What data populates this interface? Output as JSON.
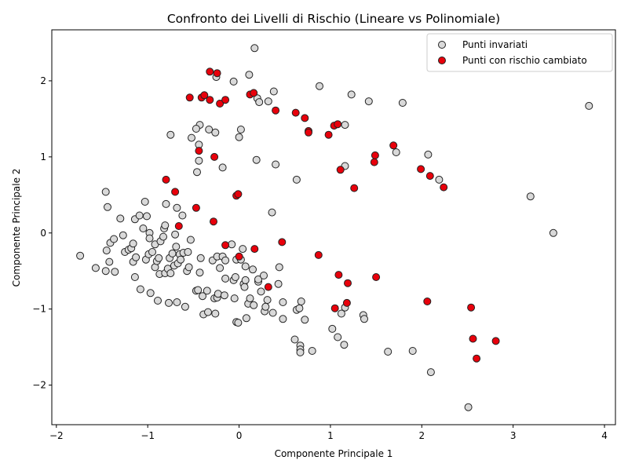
{
  "chart_data": {
    "type": "scatter",
    "title": "Confronto dei Livelli di Rischio (Lineare vs Polinomiale)",
    "xlabel": "Componente Principale 1",
    "ylabel": "Componente Principale 2",
    "xlim": [
      -2.05,
      4.12
    ],
    "ylim": [
      -2.52,
      2.67
    ],
    "xticks": [
      -2,
      -1,
      0,
      1,
      2,
      3,
      4
    ],
    "yticks": [
      -2,
      -1,
      0,
      1,
      2
    ],
    "grid": false,
    "legend_position": "top-right",
    "colors": {
      "unchanged_fill": "#d9d9d9",
      "changed_fill": "#e8000b",
      "edge": "#222222"
    },
    "series": [
      {
        "name": "Punti invariati",
        "points": [
          [
            0.17,
            2.43
          ],
          [
            0.11,
            2.08
          ],
          [
            -0.25,
            2.05
          ],
          [
            -0.06,
            1.99
          ],
          [
            0.38,
            1.86
          ],
          [
            0.88,
            1.93
          ],
          [
            1.23,
            1.82
          ],
          [
            0.2,
            1.77
          ],
          [
            0.22,
            1.72
          ],
          [
            0.32,
            1.73
          ],
          [
            1.42,
            1.73
          ],
          [
            1.79,
            1.71
          ],
          [
            3.83,
            1.67
          ],
          [
            -0.43,
            1.42
          ],
          [
            -0.47,
            1.37
          ],
          [
            -0.33,
            1.36
          ],
          [
            -0.26,
            1.32
          ],
          [
            0.02,
            1.36
          ],
          [
            0.0,
            1.26
          ],
          [
            -0.75,
            1.29
          ],
          [
            -0.52,
            1.25
          ],
          [
            -0.44,
            1.16
          ],
          [
            1.16,
            1.42
          ],
          [
            1.72,
            1.06
          ],
          [
            2.07,
            1.03
          ],
          [
            -0.44,
            0.95
          ],
          [
            -0.46,
            0.8
          ],
          [
            -0.18,
            0.86
          ],
          [
            0.19,
            0.96
          ],
          [
            0.4,
            0.9
          ],
          [
            1.16,
            0.88
          ],
          [
            2.19,
            0.7
          ],
          [
            0.63,
            0.7
          ],
          [
            3.19,
            0.48
          ],
          [
            3.44,
            0.0
          ],
          [
            -1.46,
            0.54
          ],
          [
            -1.44,
            0.34
          ],
          [
            -1.03,
            0.41
          ],
          [
            -0.8,
            0.38
          ],
          [
            -0.68,
            0.33
          ],
          [
            -1.3,
            0.19
          ],
          [
            -1.14,
            0.18
          ],
          [
            -1.09,
            0.23
          ],
          [
            -1.01,
            0.22
          ],
          [
            -0.62,
            0.23
          ],
          [
            0.36,
            0.27
          ],
          [
            -1.74,
            -0.3
          ],
          [
            -1.57,
            -0.46
          ],
          [
            -1.46,
            -0.5
          ],
          [
            -1.45,
            -0.23
          ],
          [
            -1.42,
            -0.38
          ],
          [
            -1.41,
            -0.13
          ],
          [
            -1.37,
            -0.08
          ],
          [
            -1.36,
            -0.51
          ],
          [
            -1.27,
            -0.03
          ],
          [
            -1.25,
            -0.25
          ],
          [
            -1.21,
            -0.22
          ],
          [
            -1.18,
            -0.2
          ],
          [
            -1.16,
            -0.14
          ],
          [
            -1.16,
            -0.38
          ],
          [
            -1.14,
            -0.58
          ],
          [
            -1.13,
            -0.32
          ],
          [
            -1.08,
            -0.74
          ],
          [
            -1.05,
            0.06
          ],
          [
            -1.02,
            -0.35
          ],
          [
            -0.99,
            -0.28
          ],
          [
            -0.98,
            0.0
          ],
          [
            -0.98,
            -0.07
          ],
          [
            -0.97,
            -0.79
          ],
          [
            -0.95,
            -0.25
          ],
          [
            -0.92,
            -0.45
          ],
          [
            -0.92,
            -0.15
          ],
          [
            -0.9,
            -0.37
          ],
          [
            -0.89,
            -0.89
          ],
          [
            -0.88,
            -0.33
          ],
          [
            -0.87,
            -0.54
          ],
          [
            -0.86,
            -0.11
          ],
          [
            -0.83,
            -0.05
          ],
          [
            -0.82,
            0.06
          ],
          [
            -0.81,
            0.1
          ],
          [
            -0.81,
            -0.53
          ],
          [
            -0.78,
            -0.47
          ],
          [
            -0.77,
            -0.92
          ],
          [
            -0.76,
            -0.33
          ],
          [
            -0.75,
            -0.53
          ],
          [
            -0.73,
            -0.27
          ],
          [
            -0.71,
            -0.43
          ],
          [
            -0.7,
            -0.02
          ],
          [
            -0.69,
            -0.18
          ],
          [
            -0.68,
            -0.91
          ],
          [
            -0.67,
            -0.4
          ],
          [
            -0.65,
            -0.28
          ],
          [
            -0.64,
            -0.35
          ],
          [
            -0.61,
            -0.26
          ],
          [
            -0.59,
            -0.97
          ],
          [
            -0.57,
            -0.5
          ],
          [
            -0.56,
            -0.25
          ],
          [
            -0.55,
            -0.45
          ],
          [
            -0.53,
            -0.09
          ],
          [
            -0.47,
            -0.76
          ],
          [
            -0.45,
            -0.75
          ],
          [
            -0.43,
            -0.52
          ],
          [
            -0.42,
            -0.33
          ],
          [
            -0.4,
            -0.83
          ],
          [
            -0.39,
            -1.07
          ],
          [
            -0.35,
            -0.76
          ],
          [
            -0.34,
            -1.04
          ],
          [
            -0.29,
            -0.36
          ],
          [
            -0.27,
            -0.86
          ],
          [
            -0.26,
            -1.06
          ],
          [
            -0.24,
            -0.85
          ],
          [
            -0.24,
            -0.31
          ],
          [
            -0.23,
            -0.8
          ],
          [
            -0.21,
            -0.46
          ],
          [
            -0.18,
            -0.31
          ],
          [
            -0.16,
            -0.82
          ],
          [
            -0.15,
            -0.6
          ],
          [
            -0.15,
            -0.36
          ],
          [
            -0.08,
            -0.15
          ],
          [
            -0.06,
            -0.62
          ],
          [
            -0.05,
            -0.86
          ],
          [
            -0.04,
            -0.58
          ],
          [
            -0.03,
            -1.17
          ],
          [
            -0.03,
            -0.35
          ],
          [
            -0.01,
            -1.18
          ],
          [
            0.02,
            -0.35
          ],
          [
            0.04,
            -0.21
          ],
          [
            0.05,
            -0.67
          ],
          [
            0.06,
            -0.71
          ],
          [
            0.07,
            -0.62
          ],
          [
            0.07,
            -0.44
          ],
          [
            0.08,
            -1.12
          ],
          [
            0.1,
            -0.93
          ],
          [
            0.12,
            -0.86
          ],
          [
            0.15,
            -0.48
          ],
          [
            0.16,
            -0.95
          ],
          [
            0.21,
            -0.64
          ],
          [
            0.21,
            -0.61
          ],
          [
            0.24,
            -0.77
          ],
          [
            0.27,
            -0.56
          ],
          [
            0.28,
            -1.03
          ],
          [
            0.29,
            -0.97
          ],
          [
            0.31,
            -0.88
          ],
          [
            0.37,
            -1.05
          ],
          [
            0.43,
            -0.67
          ],
          [
            0.44,
            -0.45
          ],
          [
            0.48,
            -0.91
          ],
          [
            0.48,
            -1.13
          ],
          [
            0.61,
            -1.4
          ],
          [
            0.63,
            -1.01
          ],
          [
            0.66,
            -0.99
          ],
          [
            0.67,
            -1.48
          ],
          [
            0.67,
            -1.53
          ],
          [
            0.67,
            -1.57
          ],
          [
            0.68,
            -0.9
          ],
          [
            0.72,
            -1.14
          ],
          [
            0.8,
            -1.55
          ],
          [
            1.02,
            -1.26
          ],
          [
            1.08,
            -1.37
          ],
          [
            1.12,
            -1.06
          ],
          [
            1.15,
            -1.47
          ],
          [
            1.16,
            -0.98
          ],
          [
            1.36,
            -1.08
          ],
          [
            1.37,
            -1.13
          ],
          [
            1.63,
            -1.56
          ],
          [
            1.9,
            -1.55
          ],
          [
            2.1,
            -1.83
          ],
          [
            2.51,
            -2.29
          ]
        ]
      },
      {
        "name": "Punti con rischio cambiato",
        "points": [
          [
            -0.32,
            2.12
          ],
          [
            -0.24,
            2.1
          ],
          [
            -0.54,
            1.78
          ],
          [
            -0.41,
            1.78
          ],
          [
            -0.38,
            1.81
          ],
          [
            -0.32,
            1.75
          ],
          [
            -0.21,
            1.7
          ],
          [
            -0.15,
            1.75
          ],
          [
            0.12,
            1.82
          ],
          [
            0.16,
            1.84
          ],
          [
            0.4,
            1.61
          ],
          [
            0.62,
            1.58
          ],
          [
            0.72,
            1.51
          ],
          [
            0.76,
            1.34
          ],
          [
            0.76,
            1.32
          ],
          [
            0.98,
            1.29
          ],
          [
            1.04,
            1.41
          ],
          [
            1.08,
            1.43
          ],
          [
            1.69,
            1.15
          ],
          [
            1.49,
            1.02
          ],
          [
            1.48,
            0.93
          ],
          [
            1.11,
            0.83
          ],
          [
            1.99,
            0.84
          ],
          [
            2.09,
            0.75
          ],
          [
            2.24,
            0.6
          ],
          [
            1.26,
            0.59
          ],
          [
            -0.44,
            1.08
          ],
          [
            -0.27,
            1.0
          ],
          [
            -0.8,
            0.7
          ],
          [
            -0.7,
            0.54
          ],
          [
            -0.03,
            0.49
          ],
          [
            -0.01,
            0.51
          ],
          [
            -0.47,
            0.33
          ],
          [
            -0.28,
            0.15
          ],
          [
            -0.66,
            0.09
          ],
          [
            -0.15,
            -0.16
          ],
          [
            0.17,
            -0.21
          ],
          [
            0.47,
            -0.12
          ],
          [
            0.0,
            -0.31
          ],
          [
            0.87,
            -0.29
          ],
          [
            1.09,
            -0.55
          ],
          [
            1.5,
            -0.58
          ],
          [
            1.19,
            -0.66
          ],
          [
            0.32,
            -0.71
          ],
          [
            1.18,
            -0.92
          ],
          [
            1.05,
            -0.99
          ],
          [
            2.06,
            -0.9
          ],
          [
            2.54,
            -0.98
          ],
          [
            2.56,
            -1.39
          ],
          [
            2.81,
            -1.42
          ],
          [
            2.6,
            -1.65
          ]
        ]
      }
    ]
  }
}
